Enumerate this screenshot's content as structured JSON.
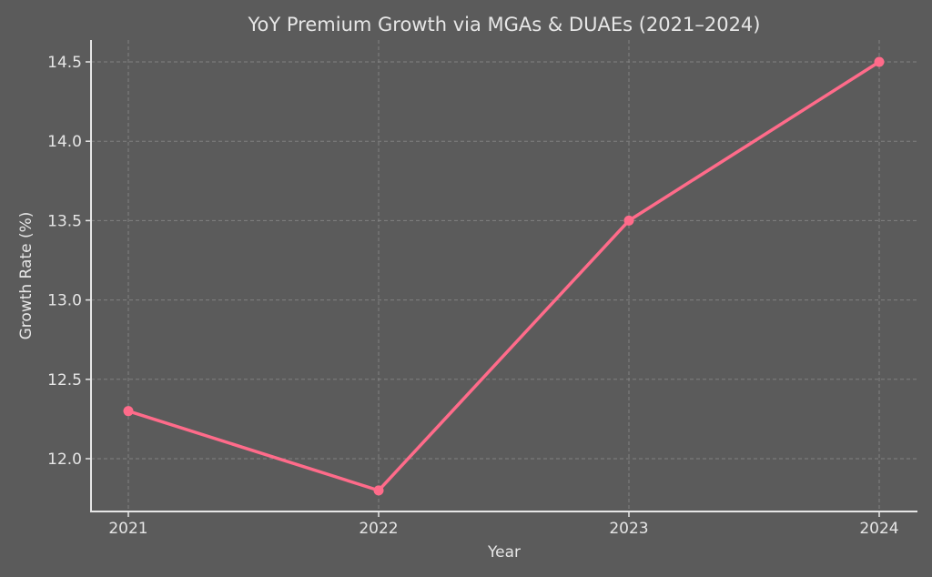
{
  "chart_data": {
    "type": "line",
    "title": "YoY Premium Growth via MGAs & DUAEs (2021–2024)",
    "xlabel": "Year",
    "ylabel": "Growth Rate (%)",
    "categories": [
      "2021",
      "2022",
      "2023",
      "2024"
    ],
    "series": [
      {
        "name": "Growth Rate (%)",
        "values": [
          12.3,
          11.8,
          13.5,
          14.5
        ],
        "color": "#ff6b8a",
        "marker": "circle"
      }
    ],
    "yticks": [
      "12.0",
      "12.5",
      "13.0",
      "13.5",
      "14.0",
      "14.5"
    ],
    "ylim": [
      11.69,
      14.61
    ],
    "grid": true,
    "legend": null
  },
  "colors": {
    "background": "#5b5b5b",
    "text": "#e6e6e6",
    "line": "#ff6b8a",
    "grid": "#8a8a8a"
  }
}
